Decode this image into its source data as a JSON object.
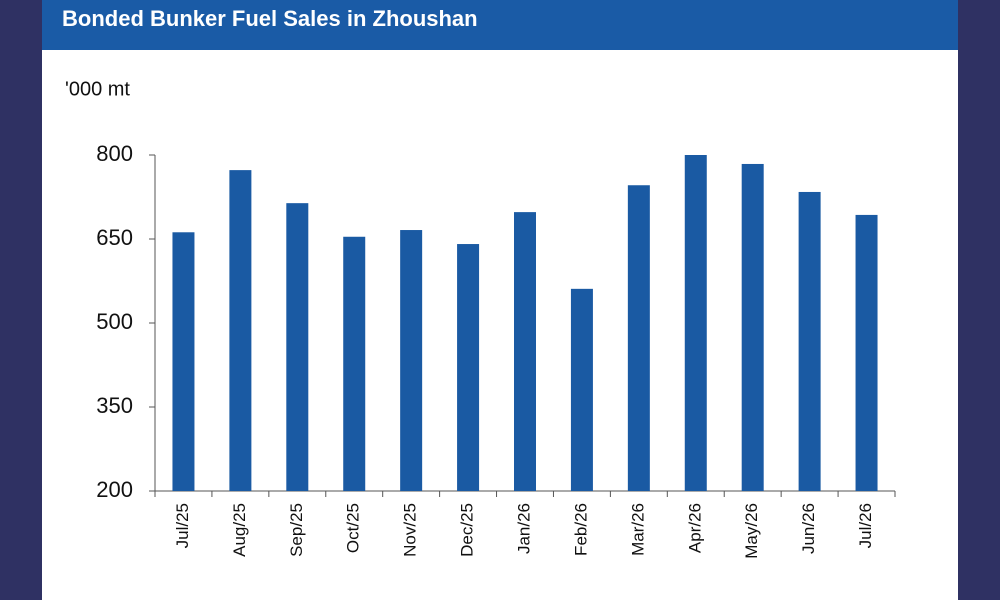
{
  "chart_data": {
    "type": "bar",
    "title": "Bonded Bunker Fuel Sales in Zhoushan",
    "y_label": "'000 mt",
    "categories": [
      "Jul/25",
      "Aug/25",
      "Sep/25",
      "Oct/25",
      "Nov/25",
      "Dec/25",
      "Jan/26",
      "Feb/26",
      "Mar/26",
      "Apr/26",
      "May/26",
      "Jun/26",
      "Jul/26"
    ],
    "values": [
      662,
      773,
      714,
      654,
      666,
      641,
      698,
      561,
      746,
      800,
      784,
      734,
      693
    ],
    "color": "#1a5aa3",
    "ylim": [
      200,
      800
    ],
    "yticks": [
      200,
      350,
      500,
      650,
      800
    ],
    "grid": false
  }
}
